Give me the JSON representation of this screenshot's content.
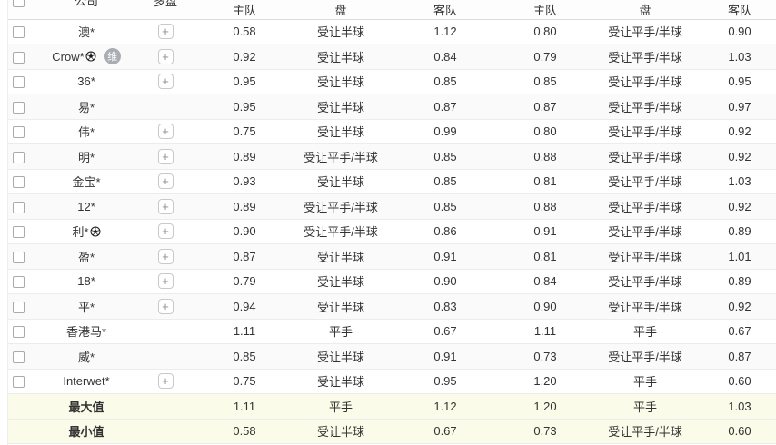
{
  "ui": {
    "plus_label": "+"
  },
  "header": {
    "company": "公司",
    "multi_market": "多盘",
    "home": "主队",
    "handicap": "盘",
    "away": "客队"
  },
  "rows": [
    {
      "company": "澳*",
      "soccer_icon": false,
      "badge": "",
      "plus": true,
      "h1": "0.58",
      "p1": "受让半球",
      "a1": "1.12",
      "h2": "0.80",
      "p2": "受让平手/半球",
      "a2": "0.90"
    },
    {
      "company": "Crow*",
      "soccer_icon": true,
      "badge": "维",
      "plus": true,
      "h1": "0.92",
      "p1": "受让半球",
      "a1": "0.84",
      "h2": "0.79",
      "p2": "受让平手/半球",
      "a2": "1.03"
    },
    {
      "company": "36*",
      "soccer_icon": false,
      "badge": "",
      "plus": true,
      "h1": "0.95",
      "p1": "受让半球",
      "a1": "0.85",
      "h2": "0.85",
      "p2": "受让平手/半球",
      "a2": "0.95"
    },
    {
      "company": "易*",
      "soccer_icon": false,
      "badge": "",
      "plus": false,
      "h1": "0.95",
      "p1": "受让半球",
      "a1": "0.87",
      "h2": "0.87",
      "p2": "受让平手/半球",
      "a2": "0.97"
    },
    {
      "company": "伟*",
      "soccer_icon": false,
      "badge": "",
      "plus": true,
      "h1": "0.75",
      "p1": "受让半球",
      "a1": "0.99",
      "h2": "0.80",
      "p2": "受让平手/半球",
      "a2": "0.92"
    },
    {
      "company": "明*",
      "soccer_icon": false,
      "badge": "",
      "plus": true,
      "h1": "0.89",
      "p1": "受让平手/半球",
      "a1": "0.85",
      "h2": "0.88",
      "p2": "受让平手/半球",
      "a2": "0.92"
    },
    {
      "company": "金宝*",
      "soccer_icon": false,
      "badge": "",
      "plus": true,
      "h1": "0.93",
      "p1": "受让半球",
      "a1": "0.85",
      "h2": "0.81",
      "p2": "受让平手/半球",
      "a2": "1.03"
    },
    {
      "company": "12*",
      "soccer_icon": false,
      "badge": "",
      "plus": true,
      "h1": "0.89",
      "p1": "受让平手/半球",
      "a1": "0.85",
      "h2": "0.88",
      "p2": "受让平手/半球",
      "a2": "0.92"
    },
    {
      "company": "利*",
      "soccer_icon": true,
      "badge": "",
      "plus": true,
      "h1": "0.90",
      "p1": "受让平手/半球",
      "a1": "0.86",
      "h2": "0.91",
      "p2": "受让平手/半球",
      "a2": "0.89"
    },
    {
      "company": "盈*",
      "soccer_icon": false,
      "badge": "",
      "plus": true,
      "h1": "0.87",
      "p1": "受让半球",
      "a1": "0.91",
      "h2": "0.81",
      "p2": "受让平手/半球",
      "a2": "1.01"
    },
    {
      "company": "18*",
      "soccer_icon": false,
      "badge": "",
      "plus": true,
      "h1": "0.79",
      "p1": "受让半球",
      "a1": "0.90",
      "h2": "0.84",
      "p2": "受让平手/半球",
      "a2": "0.89"
    },
    {
      "company": "平*",
      "soccer_icon": false,
      "badge": "",
      "plus": true,
      "h1": "0.94",
      "p1": "受让半球",
      "a1": "0.83",
      "h2": "0.90",
      "p2": "受让平手/半球",
      "a2": "0.92"
    },
    {
      "company": "香港马*",
      "soccer_icon": false,
      "badge": "",
      "plus": false,
      "h1": "1.11",
      "p1": "平手",
      "a1": "0.67",
      "h2": "1.11",
      "p2": "平手",
      "a2": "0.67"
    },
    {
      "company": "威*",
      "soccer_icon": false,
      "badge": "",
      "plus": false,
      "h1": "0.85",
      "p1": "受让半球",
      "a1": "0.91",
      "h2": "0.73",
      "p2": "受让平手/半球",
      "a2": "0.87"
    },
    {
      "company": "Interwet*",
      "soccer_icon": false,
      "badge": "",
      "plus": true,
      "h1": "0.75",
      "p1": "受让半球",
      "a1": "0.95",
      "h2": "1.20",
      "p2": "平手",
      "a2": "0.60"
    }
  ],
  "summary": [
    {
      "label": "最大值",
      "h1": "1.11",
      "p1": "平手",
      "a1": "1.12",
      "h2": "1.20",
      "p2": "平手",
      "a2": "1.03"
    },
    {
      "label": "最小值",
      "h1": "0.58",
      "p1": "受让半球",
      "a1": "0.67",
      "h2": "0.73",
      "p2": "受让平手/半球",
      "a2": "0.60"
    }
  ],
  "colors": {
    "alt_row": "#fafafa",
    "summary_row": "#fbfbe9",
    "row_border": "#ececec",
    "header_border": "#dcdcdc",
    "badge_bg": "#a9adb3"
  }
}
